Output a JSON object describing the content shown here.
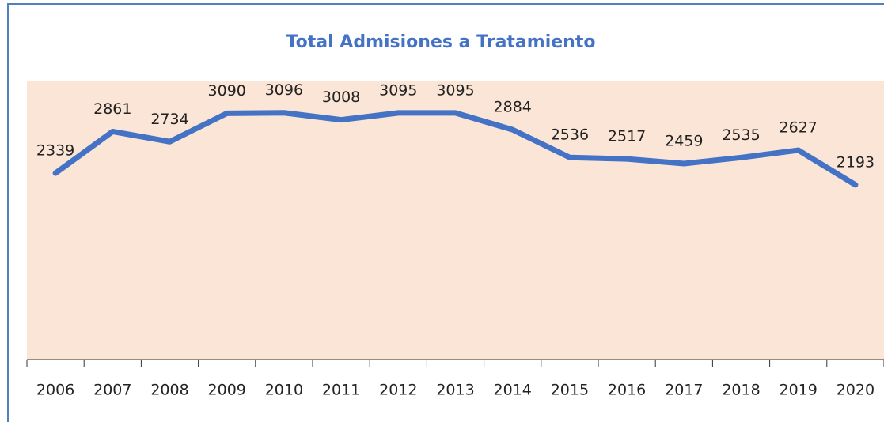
{
  "chart_data": {
    "type": "line",
    "title": "Total Admisiones a Tratamiento",
    "categories": [
      "2006",
      "2007",
      "2008",
      "2009",
      "2010",
      "2011",
      "2012",
      "2013",
      "2014",
      "2015",
      "2016",
      "2017",
      "2018",
      "2019",
      "2020"
    ],
    "values": [
      2339,
      2861,
      2734,
      3090,
      3096,
      3008,
      3095,
      3095,
      2884,
      2536,
      2517,
      2459,
      2535,
      2627,
      2193
    ],
    "color": "#4472c4",
    "background": "#fbe5d6",
    "ylim": [
      0,
      3500
    ]
  }
}
